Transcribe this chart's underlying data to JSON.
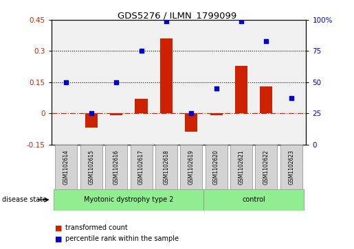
{
  "title": "GDS5276 / ILMN_1799099",
  "samples": [
    "GSM1102614",
    "GSM1102615",
    "GSM1102616",
    "GSM1102617",
    "GSM1102618",
    "GSM1102619",
    "GSM1102620",
    "GSM1102621",
    "GSM1102622",
    "GSM1102623"
  ],
  "transformed_count": [
    0.0,
    -0.07,
    -0.01,
    0.07,
    0.36,
    -0.09,
    -0.01,
    0.23,
    0.13,
    0.0
  ],
  "percentile_rank": [
    50,
    25,
    50,
    75,
    99,
    25,
    45,
    99,
    83,
    37
  ],
  "groups": [
    {
      "label": "Myotonic dystrophy type 2",
      "start": 0,
      "end": 6
    },
    {
      "label": "control",
      "start": 6,
      "end": 10
    }
  ],
  "ylim_left": [
    -0.15,
    0.45
  ],
  "ylim_right": [
    0,
    100
  ],
  "yticks_left": [
    -0.15,
    0.0,
    0.15,
    0.3,
    0.45
  ],
  "yticks_right": [
    0,
    25,
    50,
    75,
    100
  ],
  "bar_color": "#CC2200",
  "dot_color": "#0000CC",
  "hline_color": "#CC2200",
  "dotted_lines": [
    0.15,
    0.3
  ],
  "plot_bg_color": "#F0F0F0",
  "group_color": "#90EE90",
  "box_color": "#D3D3D3",
  "disease_state_label": "disease state",
  "legend_items": [
    "transformed count",
    "percentile rank within the sample"
  ]
}
